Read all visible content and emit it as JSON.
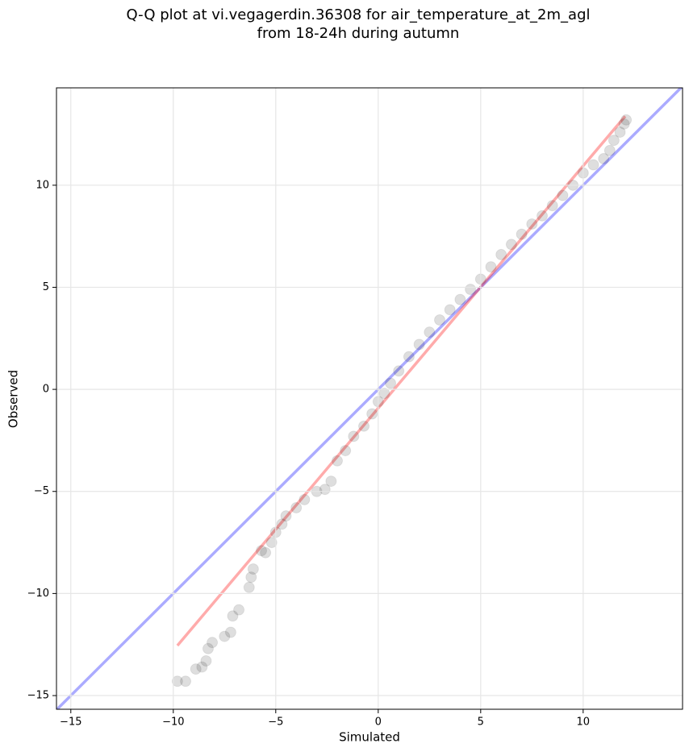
{
  "chart_data": {
    "type": "scatter",
    "title": [
      "Q-Q plot at vi.vegagerdin.36308 for air_temperature_at_2m_agl",
      "from 18-24h during autumn"
    ],
    "x_label": "Simulated",
    "y_label": "Observed",
    "xlim": [
      -15.7,
      14.85
    ],
    "ylim": [
      -15.67,
      14.77
    ],
    "xticks": [
      {
        "value": -15,
        "label": "−15"
      },
      {
        "value": -10,
        "label": "−10"
      },
      {
        "value": -5,
        "label": "−5"
      },
      0,
      5,
      10
    ],
    "yticks": [
      {
        "value": -15,
        "label": "−15"
      },
      {
        "value": -10,
        "label": "−10"
      },
      {
        "value": -5,
        "label": "−5"
      },
      0,
      5,
      10
    ],
    "grid": true,
    "color": "#000000",
    "x": [
      -9.8,
      -9.4,
      -8.9,
      -8.6,
      -8.4,
      -8.3,
      -8.1,
      -7.5,
      -7.2,
      -7.1,
      -6.8,
      -6.3,
      -6.2,
      -6.1,
      -5.7,
      -5.5,
      -5.2,
      -5.0,
      -4.7,
      -4.5,
      -4.0,
      -3.6,
      -3.0,
      -2.6,
      -2.3,
      -2.0,
      -1.6,
      -1.2,
      -0.7,
      -0.3,
      0.0,
      0.3,
      0.6,
      1.0,
      1.5,
      2.0,
      2.5,
      3.0,
      3.5,
      4.0,
      4.5,
      5.0,
      5.5,
      6.0,
      6.5,
      7.0,
      7.5,
      8.0,
      8.5,
      9.0,
      9.5,
      10.0,
      10.5,
      11.0,
      11.3,
      11.5,
      11.8,
      12.0,
      12.1
    ],
    "values": [
      -14.3,
      -14.3,
      -13.7,
      -13.6,
      -13.3,
      -12.7,
      -12.4,
      -12.1,
      -11.9,
      -11.1,
      -10.8,
      -9.7,
      -9.2,
      -8.8,
      -7.9,
      -8.0,
      -7.5,
      -7.0,
      -6.6,
      -6.2,
      -5.8,
      -5.4,
      -5.0,
      -4.9,
      -4.5,
      -3.5,
      -3.0,
      -2.3,
      -1.8,
      -1.2,
      -0.6,
      -0.2,
      0.3,
      0.9,
      1.6,
      2.2,
      2.8,
      3.4,
      3.9,
      4.4,
      4.9,
      5.4,
      6.0,
      6.6,
      7.1,
      7.6,
      8.1,
      8.5,
      9.0,
      9.5,
      10.0,
      10.6,
      11.0,
      11.3,
      11.7,
      12.2,
      12.6,
      13.0,
      13.2
    ],
    "lines": [
      {
        "color": "#0000ff",
        "x": [
          -15.7,
          14.85
        ],
        "values": [
          -15.7,
          14.85
        ]
      },
      {
        "color": "#ff0000",
        "x": [
          -9.8,
          12.05
        ],
        "values": [
          -12.55,
          13.38
        ]
      }
    ]
  }
}
